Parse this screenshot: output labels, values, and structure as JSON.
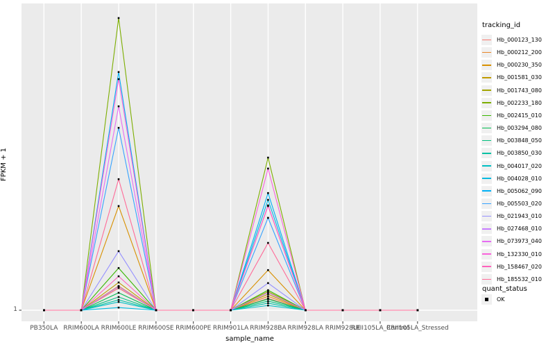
{
  "chart_data": {
    "type": "line",
    "title": "",
    "xlabel": "sample_name",
    "ylabel": "FPKM + 1",
    "legend_position": "right",
    "grid": "on",
    "panel_background": "#EBEBEB",
    "gridline_color": "#FFFFFF",
    "point_color": "#000000",
    "point_shape": "square",
    "categories": [
      "PB350LA",
      "RRIM600LA",
      "RRIM600LE",
      "RRIM600SE",
      "RRIM600PE",
      "RRIM901LA",
      "RRIM928BA",
      "RRIM928LA",
      "RRIM928LE",
      "RRII105LA_Control",
      "RRII105LA_Stressed"
    ],
    "y_ticks": [
      {
        "label": "1",
        "value": 1
      }
    ],
    "ylim": [
      1,
      100
    ],
    "series": [
      {
        "name": "Hb_000123_130",
        "color": "#F8766D",
        "values": [
          1,
          1,
          8.5,
          1,
          1,
          1,
          5.0,
          1,
          1,
          1,
          1
        ]
      },
      {
        "name": "Hb_000212_200",
        "color": "#E88526",
        "values": [
          1,
          1,
          9.2,
          1,
          1,
          1,
          5.7,
          1,
          1,
          1,
          1
        ]
      },
      {
        "name": "Hb_000230_350",
        "color": "#D89000",
        "values": [
          1,
          1,
          36.3,
          1,
          1,
          1,
          14.6,
          1,
          1,
          1,
          1
        ]
      },
      {
        "name": "Hb_001581_030",
        "color": "#C09B00",
        "values": [
          1,
          1,
          10.4,
          1,
          1,
          1,
          6.4,
          1,
          1,
          1,
          1
        ]
      },
      {
        "name": "Hb_001743_080",
        "color": "#A3A500",
        "values": [
          1,
          1,
          9.0,
          1,
          1,
          1,
          7.3,
          1,
          1,
          1,
          1
        ]
      },
      {
        "name": "Hb_002233_180",
        "color": "#7CAE00",
        "values": [
          1,
          1,
          100.0,
          1,
          1,
          1,
          52.7,
          1,
          1,
          1,
          1
        ]
      },
      {
        "name": "Hb_002415_010",
        "color": "#39B600",
        "values": [
          1,
          1,
          15.3,
          1,
          1,
          1,
          7.8,
          1,
          1,
          1,
          1
        ]
      },
      {
        "name": "Hb_003294_080",
        "color": "#00BB4E",
        "values": [
          1,
          1,
          6.9,
          1,
          1,
          1,
          4.8,
          1,
          1,
          1,
          1
        ]
      },
      {
        "name": "Hb_003848_050",
        "color": "#00BF7D",
        "values": [
          1,
          1,
          5.5,
          1,
          1,
          1,
          4.1,
          1,
          1,
          1,
          1
        ]
      },
      {
        "name": "Hb_003850_030",
        "color": "#00C1A3",
        "values": [
          1,
          1,
          4.5,
          1,
          1,
          1,
          3.4,
          1,
          1,
          1,
          1
        ]
      },
      {
        "name": "Hb_004017_020",
        "color": "#00BFC4",
        "values": [
          1,
          1,
          3.8,
          1,
          1,
          1,
          2.6,
          1,
          1,
          1,
          1
        ]
      },
      {
        "name": "Hb_004028_010",
        "color": "#00BAE0",
        "values": [
          1,
          1,
          1.9,
          1,
          1,
          1,
          38.4,
          1,
          1,
          1,
          1
        ]
      },
      {
        "name": "Hb_005062_090",
        "color": "#00B0F6",
        "values": [
          1,
          1,
          81.7,
          1,
          1,
          1,
          40.7,
          1,
          1,
          1,
          1
        ]
      },
      {
        "name": "Hb_005503_020",
        "color": "#35A2FF",
        "values": [
          1,
          1,
          62.8,
          1,
          1,
          1,
          32.3,
          1,
          1,
          1,
          1
        ]
      },
      {
        "name": "Hb_021943_010",
        "color": "#9590FF",
        "values": [
          1,
          1,
          21.0,
          1,
          1,
          1,
          10.2,
          1,
          1,
          1,
          1
        ]
      },
      {
        "name": "Hb_027468_010",
        "color": "#C77CFF",
        "values": [
          1,
          1,
          9.0,
          1,
          1,
          1,
          6.9,
          1,
          1,
          1,
          1
        ]
      },
      {
        "name": "Hb_073973_040",
        "color": "#E76BF3",
        "values": [
          1,
          1,
          70.1,
          1,
          1,
          1,
          36.5,
          1,
          1,
          1,
          1
        ]
      },
      {
        "name": "Hb_132330_010",
        "color": "#FA62DB",
        "values": [
          1,
          1,
          79.3,
          1,
          1,
          1,
          49.0,
          1,
          1,
          1,
          1
        ]
      },
      {
        "name": "Hb_158467_020",
        "color": "#FF62BC",
        "values": [
          1,
          1,
          12.5,
          1,
          1,
          1,
          36.3,
          1,
          1,
          1,
          1
        ]
      },
      {
        "name": "Hb_185532_010",
        "color": "#FF6A98",
        "values": [
          1,
          1,
          45.4,
          1,
          1,
          1,
          23.8,
          1,
          1,
          1,
          1
        ]
      }
    ]
  },
  "legend": {
    "tracking_id_title": "tracking_id",
    "quant_status_title": "quant_status",
    "quant_status_items": [
      {
        "label": "OK",
        "marker": "black-square"
      }
    ]
  }
}
